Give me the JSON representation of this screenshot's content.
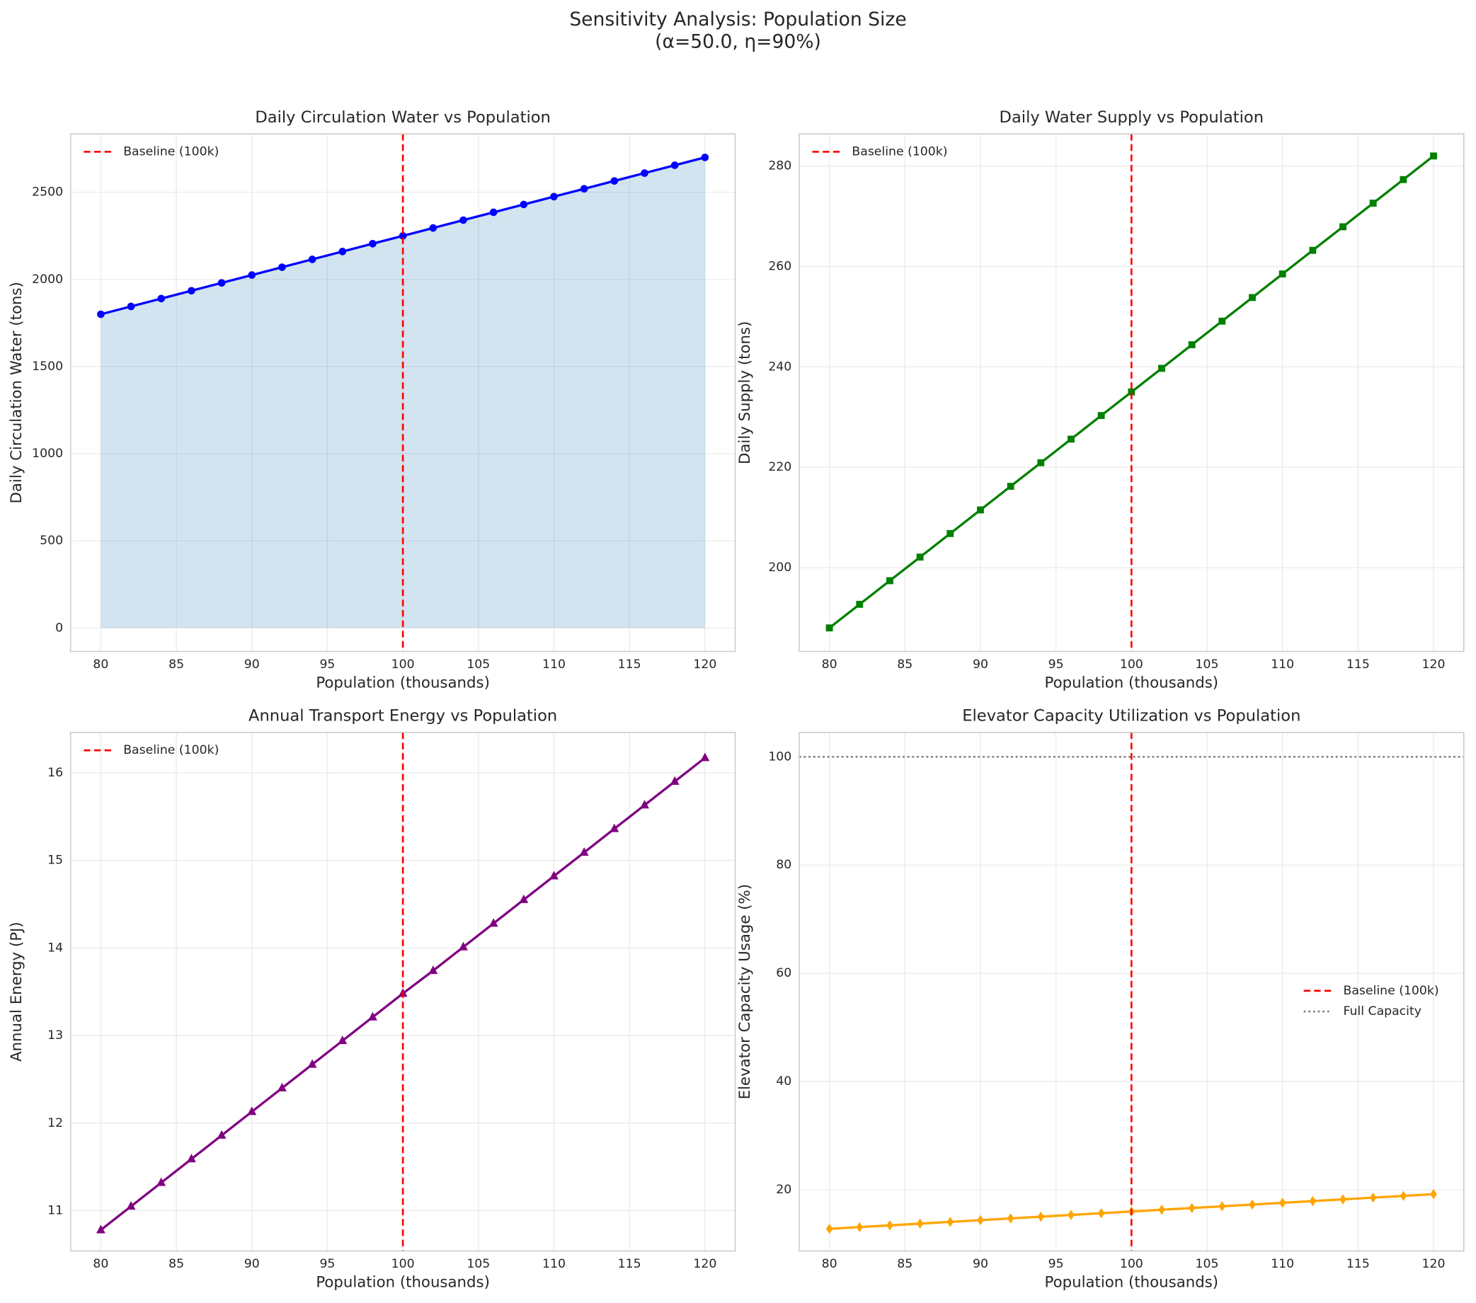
{
  "figure_title": [
    "Sensitivity Analysis: Population Size",
    "(α=50.0, η=90%)"
  ],
  "chart_data": [
    {
      "type": "line",
      "title": "Daily Circulation Water vs Population",
      "xlabel": "Population (thousands)",
      "ylabel": "Daily Circulation Water (tons)",
      "x": [
        80,
        82,
        84,
        86,
        88,
        90,
        92,
        94,
        96,
        98,
        100,
        102,
        104,
        106,
        108,
        110,
        112,
        114,
        116,
        118,
        120
      ],
      "series": [
        {
          "color": "#0000ff",
          "marker": "circle",
          "fill": "#1f77b4",
          "values": [
            1800,
            1845,
            1890,
            1935,
            1980,
            2025,
            2070,
            2115,
            2160,
            2205,
            2250,
            2295,
            2340,
            2385,
            2430,
            2475,
            2520,
            2565,
            2610,
            2655,
            2700
          ]
        }
      ],
      "vlines": [
        {
          "x": 100,
          "label": "Baseline (100k)",
          "color": "#ff0000",
          "style": "dashed"
        }
      ],
      "xlim": [
        78,
        122
      ],
      "xticks": [
        80,
        85,
        90,
        95,
        100,
        105,
        110,
        115,
        120
      ],
      "ylim": [
        -135,
        2835
      ],
      "yticks": [
        0,
        500,
        1000,
        1500,
        2000,
        2500
      ],
      "grid": true,
      "legend": "upper left"
    },
    {
      "type": "line",
      "title": "Daily Water Supply vs Population",
      "xlabel": "Population (thousands)",
      "ylabel": "Daily Supply (tons)",
      "x": [
        80,
        82,
        84,
        86,
        88,
        90,
        92,
        94,
        96,
        98,
        100,
        102,
        104,
        106,
        108,
        110,
        112,
        114,
        116,
        118,
        120
      ],
      "series": [
        {
          "color": "#008000",
          "marker": "square",
          "values": [
            188,
            192.7,
            197.4,
            202.1,
            206.8,
            211.5,
            216.2,
            220.9,
            225.6,
            230.3,
            235,
            239.7,
            244.4,
            249.1,
            253.8,
            258.5,
            263.2,
            267.9,
            272.6,
            277.3,
            282
          ]
        }
      ],
      "vlines": [
        {
          "x": 100,
          "label": "Baseline (100k)",
          "color": "#ff0000",
          "style": "dashed"
        }
      ],
      "xlim": [
        78,
        122
      ],
      "xticks": [
        80,
        85,
        90,
        95,
        100,
        105,
        110,
        115,
        120
      ],
      "ylim": [
        183.3,
        286.4
      ],
      "yticks": [
        200,
        220,
        240,
        260,
        280
      ],
      "grid": true,
      "legend": "upper left"
    },
    {
      "type": "line",
      "title": "Annual Transport Energy vs Population",
      "xlabel": "Population (thousands)",
      "ylabel": "Annual Energy (PJ)",
      "x": [
        80,
        82,
        84,
        86,
        88,
        90,
        92,
        94,
        96,
        98,
        100,
        102,
        104,
        106,
        108,
        110,
        112,
        114,
        116,
        118,
        120
      ],
      "series": [
        {
          "color": "#800080",
          "marker": "triangle",
          "values": [
            10.78,
            11.05,
            11.32,
            11.59,
            11.86,
            12.13,
            12.4,
            12.67,
            12.94,
            13.21,
            13.48,
            13.74,
            14.01,
            14.28,
            14.55,
            14.82,
            15.09,
            15.36,
            15.63,
            15.9,
            16.17
          ]
        }
      ],
      "vlines": [
        {
          "x": 100,
          "label": "Baseline (100k)",
          "color": "#ff0000",
          "style": "dashed"
        }
      ],
      "xlim": [
        78,
        122
      ],
      "xticks": [
        80,
        85,
        90,
        95,
        100,
        105,
        110,
        115,
        120
      ],
      "ylim": [
        10.54,
        16.46
      ],
      "yticks": [
        11,
        12,
        13,
        14,
        15,
        16
      ],
      "grid": true,
      "legend": "upper left"
    },
    {
      "type": "line",
      "title": "Elevator Capacity Utilization vs Population",
      "xlabel": "Population (thousands)",
      "ylabel": "Elevator Capacity Usage (%)",
      "x": [
        80,
        82,
        84,
        86,
        88,
        90,
        92,
        94,
        96,
        98,
        100,
        102,
        104,
        106,
        108,
        110,
        112,
        114,
        116,
        118,
        120
      ],
      "series": [
        {
          "color": "#ffa500",
          "marker": "diamond",
          "values": [
            12.8,
            13.12,
            13.44,
            13.76,
            14.08,
            14.4,
            14.72,
            15.04,
            15.36,
            15.68,
            16,
            16.32,
            16.64,
            16.96,
            17.28,
            17.6,
            17.92,
            18.24,
            18.56,
            18.88,
            19.2
          ]
        }
      ],
      "vlines": [
        {
          "x": 100,
          "label": "Baseline (100k)",
          "color": "#ff0000",
          "style": "dashed"
        }
      ],
      "hlines": [
        {
          "y": 100,
          "label": "Full Capacity",
          "color": "#808080",
          "style": "dotted"
        }
      ],
      "xlim": [
        78,
        122
      ],
      "xticks": [
        80,
        85,
        90,
        95,
        100,
        105,
        110,
        115,
        120
      ],
      "ylim": [
        8.7,
        104.5
      ],
      "yticks": [
        20,
        40,
        60,
        80,
        100
      ],
      "grid": true,
      "legend": "center right"
    }
  ]
}
